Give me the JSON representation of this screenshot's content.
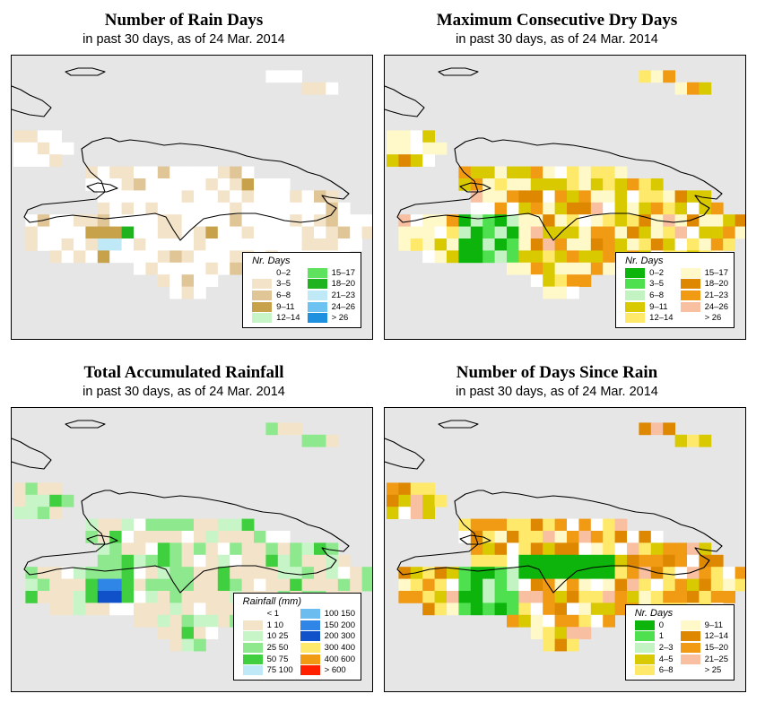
{
  "date": "24 Mar. 2014",
  "panels": [
    {
      "title": "Number of Rain Days",
      "subtitle": "in past 30 days, as of  24 Mar. 2014",
      "legend": {
        "title": "Nr. Days",
        "items": [
          {
            "label": "0–2",
            "color": "#ffffff"
          },
          {
            "label": "3–5",
            "color": "#f3e3c8"
          },
          {
            "label": "6–8",
            "color": "#e0c596"
          },
          {
            "label": "9–11",
            "color": "#c8a24a"
          },
          {
            "label": "12–14",
            "color": "#c8f5c8"
          },
          {
            "label": "15–17",
            "color": "#5fe35f"
          },
          {
            "label": "18–20",
            "color": "#1fb41f"
          },
          {
            "label": "21–23",
            "color": "#bfe9f7"
          },
          {
            "label": "24–26",
            "color": "#6cc2f0"
          },
          {
            "label": "> 26",
            "color": "#1e90e0"
          }
        ]
      }
    },
    {
      "title": "Maximum Consecutive Dry Days",
      "subtitle": "in past 30 days, as of  24 Mar. 2014",
      "legend": {
        "title": "Nr. Days",
        "items": [
          {
            "label": "0–2",
            "color": "#0cb40c"
          },
          {
            "label": "3–5",
            "color": "#4fe04f"
          },
          {
            "label": "6–8",
            "color": "#c3f3c3"
          },
          {
            "label": "9–11",
            "color": "#d9c900"
          },
          {
            "label": "12–14",
            "color": "#ffe96a"
          },
          {
            "label": "15–17",
            "color": "#fff8c8"
          },
          {
            "label": "18–20",
            "color": "#dd8800"
          },
          {
            "label": "21–23",
            "color": "#f19a14"
          },
          {
            "label": "24–26",
            "color": "#f8bfa0"
          },
          {
            "label": "> 26",
            "color": "#ffffff"
          }
        ]
      }
    },
    {
      "title": "Total Accumulated Rainfall",
      "subtitle": "in past 30 days, as of  24 Mar. 2014",
      "legend": {
        "title": "Rainfall (mm)",
        "items": [
          {
            "label": "< 1",
            "color": "#ffffff"
          },
          {
            "label": "1    10",
            "color": "#f3e3c8"
          },
          {
            "label": "10    25",
            "color": "#c8f5c8"
          },
          {
            "label": "25    50",
            "color": "#8ee88e"
          },
          {
            "label": "50    75",
            "color": "#3fcf3f"
          },
          {
            "label": "75    100",
            "color": "#bfe9f7"
          },
          {
            "label": "100    150",
            "color": "#6cbcf0"
          },
          {
            "label": "150    200",
            "color": "#2f86e6"
          },
          {
            "label": "200    300",
            "color": "#1050c8"
          },
          {
            "label": "300    400",
            "color": "#ffe96a"
          },
          {
            "label": "400    600",
            "color": "#f19a14"
          },
          {
            "label": "> 600",
            "color": "#ff2000"
          }
        ]
      }
    },
    {
      "title": "Number of Days Since Rain",
      "subtitle": "in past 30 days, as of  24 Mar. 2014",
      "legend": {
        "title": "Nr. Days",
        "items": [
          {
            "label": "0",
            "color": "#0cb40c"
          },
          {
            "label": "1",
            "color": "#4fe04f"
          },
          {
            "label": "2–3",
            "color": "#c3f3c3"
          },
          {
            "label": "4–5",
            "color": "#d9c900"
          },
          {
            "label": "6–8",
            "color": "#ffe96a"
          },
          {
            "label": "9–11",
            "color": "#fff8c8"
          },
          {
            "label": "12–14",
            "color": "#dd8800"
          },
          {
            "label": "15–20",
            "color": "#f19a14"
          },
          {
            "label": "21–25",
            "color": "#f8bfa0"
          },
          {
            "label": "> 25",
            "color": "#ffffff"
          }
        ]
      }
    }
  ]
}
